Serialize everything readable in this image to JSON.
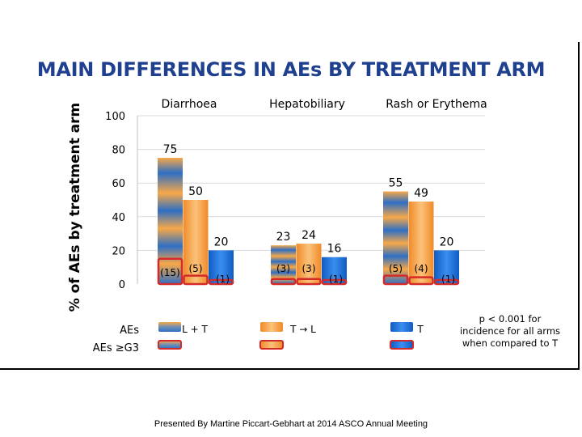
{
  "slide": {
    "title": "MAIN DIFFERENCES IN AEs BY TREATMENT ARM",
    "footer": "Presented By Martine Piccart-Gebhart at 2014 ASCO Annual Meeting"
  },
  "chart_data": {
    "type": "bar",
    "ylabel": "% of AEs by treatment arm",
    "ylim": [
      0,
      100
    ],
    "yticks": [
      "0",
      "20",
      "40",
      "60",
      "80",
      "100"
    ],
    "grid": true,
    "categories": [
      "Diarrhoea",
      "Hepatobiliary",
      "Rash or Erythema"
    ],
    "series": [
      {
        "name": "L + T",
        "values": [
          75,
          23,
          55
        ],
        "g3": [
          15,
          3,
          5
        ],
        "color": "#2e6fc4",
        "g3_labels": [
          "(15)",
          "(3)",
          "(5)"
        ]
      },
      {
        "name": "T → L",
        "values": [
          50,
          24,
          49
        ],
        "g3": [
          5,
          3,
          4
        ],
        "color": "#f7a848",
        "g3_labels": [
          "(5)",
          "(3)",
          "(4)"
        ]
      },
      {
        "name": "T",
        "values": [
          20,
          16,
          20
        ],
        "g3": [
          1,
          1,
          1
        ],
        "color": "#1a6fd6",
        "g3_labels": [
          "(1)",
          "(1)",
          "(1)"
        ]
      }
    ],
    "legend": {
      "row_labels": [
        "AEs",
        "AEs ≥G3"
      ],
      "items": [
        "L + T",
        "T → L",
        "T"
      ]
    },
    "annotation": [
      "p < 0.001 for",
      "incidence for all arms",
      "when compared to T"
    ]
  }
}
